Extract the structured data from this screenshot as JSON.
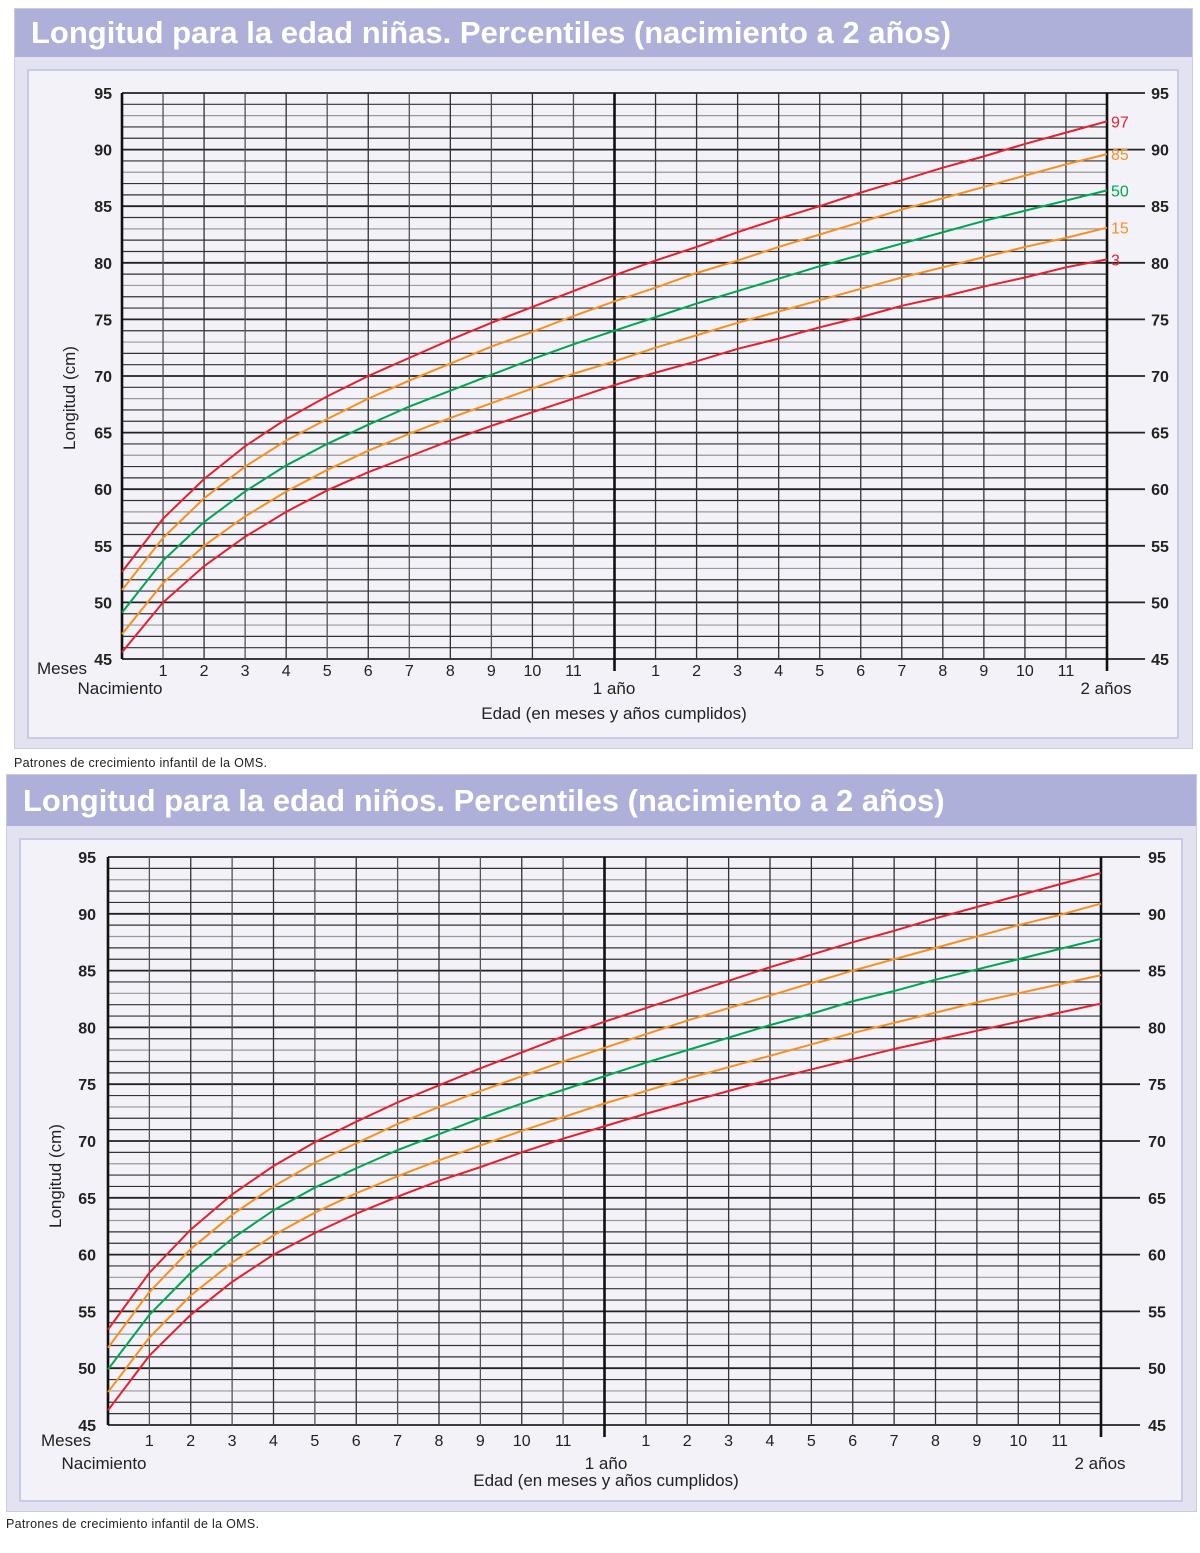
{
  "chart_data": [
    {
      "type": "line",
      "title": "Longitud para la edad niñas. Percentiles (nacimiento a 2 años)",
      "xlabel": "Edad (en meses y años cumplidos)",
      "ylabel": "Longitud (cm)",
      "x_axis_prefix": "Meses",
      "x_start_label": "Nacimiento",
      "x_year_labels": [
        "1 año",
        "2 años"
      ],
      "x_tick_labels": [
        "1",
        "2",
        "3",
        "4",
        "5",
        "6",
        "7",
        "8",
        "9",
        "10",
        "11"
      ],
      "x_unit": "months",
      "xlim": [
        0,
        24
      ],
      "ylim": [
        45,
        95
      ],
      "y_ticks": [
        45,
        50,
        55,
        60,
        65,
        70,
        75,
        80,
        85,
        90,
        95
      ],
      "grid": true,
      "x": [
        0,
        1,
        2,
        3,
        4,
        5,
        6,
        7,
        8,
        9,
        10,
        11,
        12,
        13,
        14,
        15,
        16,
        17,
        18,
        19,
        20,
        21,
        22,
        23,
        24
      ],
      "series": [
        {
          "name": "97",
          "color": "#e8202e",
          "values": [
            52.7,
            57.4,
            60.9,
            63.8,
            66.2,
            68.2,
            70.0,
            71.6,
            73.2,
            74.7,
            76.1,
            77.5,
            78.9,
            80.2,
            81.4,
            82.7,
            83.9,
            85.0,
            86.2,
            87.3,
            88.4,
            89.4,
            90.5,
            91.5,
            92.5
          ]
        },
        {
          "name": "85",
          "color": "#f7901e",
          "values": [
            51.1,
            55.7,
            59.2,
            62.0,
            64.3,
            66.2,
            68.0,
            69.6,
            71.1,
            72.6,
            73.9,
            75.3,
            76.6,
            77.8,
            79.1,
            80.2,
            81.4,
            82.5,
            83.6,
            84.7,
            85.7,
            86.7,
            87.7,
            88.7,
            89.6
          ]
        },
        {
          "name": "50",
          "color": "#00a651",
          "values": [
            49.1,
            53.7,
            57.1,
            59.8,
            62.1,
            64.0,
            65.7,
            67.3,
            68.7,
            70.1,
            71.5,
            72.8,
            74.0,
            75.2,
            76.4,
            77.5,
            78.6,
            79.7,
            80.7,
            81.7,
            82.7,
            83.7,
            84.6,
            85.5,
            86.4
          ]
        },
        {
          "name": "15",
          "color": "#f7901e",
          "values": [
            47.2,
            51.7,
            55.0,
            57.6,
            59.8,
            61.7,
            63.4,
            64.9,
            66.3,
            67.6,
            68.9,
            70.2,
            71.3,
            72.5,
            73.6,
            74.7,
            75.7,
            76.7,
            77.7,
            78.7,
            79.6,
            80.5,
            81.4,
            82.2,
            83.1
          ]
        },
        {
          "name": "3",
          "color": "#e8202e",
          "values": [
            45.6,
            50.0,
            53.2,
            55.8,
            58.0,
            59.9,
            61.5,
            62.9,
            64.3,
            65.6,
            66.8,
            68.0,
            69.2,
            70.3,
            71.3,
            72.4,
            73.3,
            74.3,
            75.2,
            76.2,
            77.0,
            77.9,
            78.7,
            79.6,
            80.3
          ]
        }
      ],
      "show_series_labels": true,
      "caption": "Patrones de crecimiento infantil de la OMS."
    },
    {
      "type": "line",
      "title": "Longitud para la edad niños. Percentiles (nacimiento a 2 años)",
      "xlabel": "Edad (en meses y años cumplidos)",
      "ylabel": "Longitud (cm)",
      "x_axis_prefix": "Meses",
      "x_start_label": "Nacimiento",
      "x_year_labels": [
        "1 año",
        "2 años"
      ],
      "x_tick_labels": [
        "1",
        "2",
        "3",
        "4",
        "5",
        "6",
        "7",
        "8",
        "9",
        "10",
        "11"
      ],
      "x_unit": "months",
      "xlim": [
        0,
        24
      ],
      "ylim": [
        45,
        95
      ],
      "y_ticks": [
        45,
        50,
        55,
        60,
        65,
        70,
        75,
        80,
        85,
        90,
        95
      ],
      "grid": true,
      "x": [
        0,
        1,
        2,
        3,
        4,
        5,
        6,
        7,
        8,
        9,
        10,
        11,
        12,
        13,
        14,
        15,
        16,
        17,
        18,
        19,
        20,
        21,
        22,
        23,
        24
      ],
      "series": [
        {
          "color": "#e8202e",
          "values": [
            53.4,
            58.4,
            62.2,
            65.3,
            67.8,
            69.9,
            71.7,
            73.4,
            74.9,
            76.4,
            77.8,
            79.2,
            80.5,
            81.7,
            82.9,
            84.1,
            85.3,
            86.4,
            87.5,
            88.5,
            89.6,
            90.6,
            91.6,
            92.6,
            93.6
          ]
        },
        {
          "color": "#f7901e",
          "values": [
            51.8,
            56.7,
            60.5,
            63.5,
            66.0,
            68.1,
            69.8,
            71.5,
            73.0,
            74.4,
            75.7,
            77.0,
            78.2,
            79.4,
            80.6,
            81.7,
            82.8,
            83.9,
            85.0,
            86.0,
            87.0,
            88.0,
            89.0,
            89.9,
            90.9
          ]
        },
        {
          "color": "#00a651",
          "values": [
            49.9,
            54.7,
            58.4,
            61.4,
            63.9,
            65.9,
            67.6,
            69.2,
            70.6,
            72.0,
            73.3,
            74.5,
            75.7,
            76.9,
            78.0,
            79.1,
            80.2,
            81.2,
            82.3,
            83.2,
            84.2,
            85.1,
            86.0,
            86.9,
            87.8
          ]
        },
        {
          "color": "#f7901e",
          "values": [
            47.9,
            52.7,
            56.4,
            59.3,
            61.7,
            63.7,
            65.4,
            66.9,
            68.3,
            69.6,
            70.9,
            72.1,
            73.3,
            74.4,
            75.5,
            76.5,
            77.5,
            78.5,
            79.5,
            80.4,
            81.3,
            82.2,
            83.0,
            83.8,
            84.6
          ]
        },
        {
          "color": "#e8202e",
          "values": [
            46.3,
            51.1,
            54.7,
            57.6,
            60.0,
            61.9,
            63.6,
            65.1,
            66.5,
            67.7,
            69.0,
            70.2,
            71.3,
            72.4,
            73.4,
            74.4,
            75.4,
            76.3,
            77.2,
            78.1,
            78.9,
            79.7,
            80.5,
            81.3,
            82.1
          ]
        }
      ],
      "show_series_labels": false,
      "caption": "Patrones de crecimiento infantil de la OMS."
    }
  ]
}
